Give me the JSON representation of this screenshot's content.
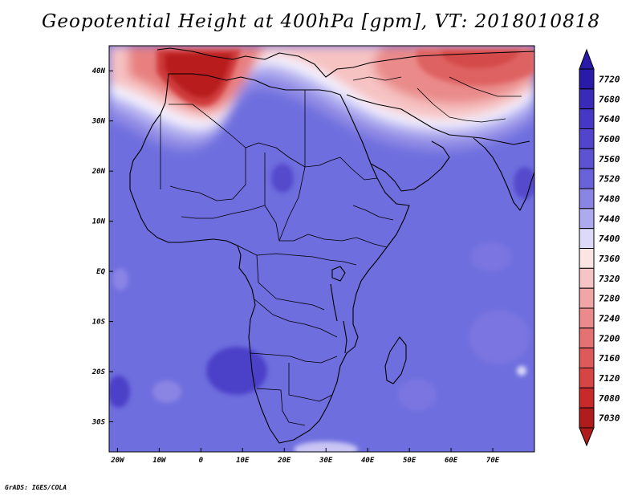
{
  "title": "Geopotential Height at 400hPa [gpm], VT: 2018010818",
  "credit": "GrADS: IGES/COLA",
  "map": {
    "lon_range": [
      -22,
      80
    ],
    "lat_range": [
      -36,
      45
    ],
    "lon_ticks": [
      {
        "value": -20,
        "label": "20W"
      },
      {
        "value": -10,
        "label": "10W"
      },
      {
        "value": 0,
        "label": "0"
      },
      {
        "value": 10,
        "label": "10E"
      },
      {
        "value": 20,
        "label": "20E"
      },
      {
        "value": 30,
        "label": "30E"
      },
      {
        "value": 40,
        "label": "40E"
      },
      {
        "value": 50,
        "label": "50E"
      },
      {
        "value": 60,
        "label": "60E"
      },
      {
        "value": 70,
        "label": "70E"
      }
    ],
    "lat_ticks": [
      {
        "value": 40,
        "label": "40N"
      },
      {
        "value": 30,
        "label": "30N"
      },
      {
        "value": 20,
        "label": "20N"
      },
      {
        "value": 10,
        "label": "10N"
      },
      {
        "value": 0,
        "label": "EQ"
      },
      {
        "value": -10,
        "label": "10S"
      },
      {
        "value": -20,
        "label": "20S"
      },
      {
        "value": -30,
        "label": "30S"
      }
    ],
    "background_color": "#6e6ede"
  },
  "colorbar": {
    "levels": [
      {
        "label": "7720",
        "color": "#2a1aa8"
      },
      {
        "label": "7680",
        "color": "#3a2ab8"
      },
      {
        "label": "7640",
        "color": "#4638c4"
      },
      {
        "label": "7600",
        "color": "#5244cc"
      },
      {
        "label": "7560",
        "color": "#5c52d2"
      },
      {
        "label": "7520",
        "color": "#6a62da"
      },
      {
        "label": "7480",
        "color": "#8a84e2"
      },
      {
        "label": "7440",
        "color": "#aeaaee"
      },
      {
        "label": "7400",
        "color": "#dcdaf8"
      },
      {
        "label": "7360",
        "color": "#fbe4e4"
      },
      {
        "label": "7320",
        "color": "#f6c4c4"
      },
      {
        "label": "7280",
        "color": "#f0a6a6"
      },
      {
        "label": "7240",
        "color": "#ea8a8a"
      },
      {
        "label": "7200",
        "color": "#e47272"
      },
      {
        "label": "7160",
        "color": "#de5a5a"
      },
      {
        "label": "7120",
        "color": "#d64444"
      },
      {
        "label": "7080",
        "color": "#c82a2a"
      },
      {
        "label": "7030",
        "color": "#b01c1c"
      }
    ]
  }
}
